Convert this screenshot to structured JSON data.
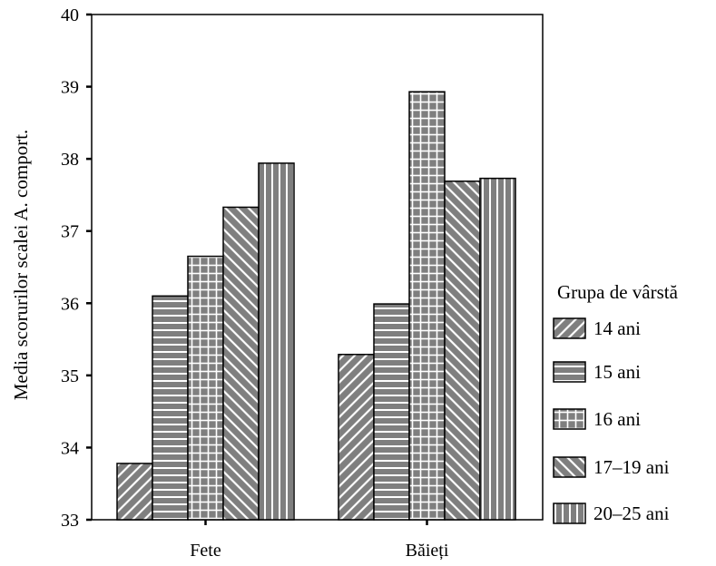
{
  "chart_data": {
    "type": "bar",
    "ylabel": "Media scorurilor scalei A. comport.",
    "xlabel": "",
    "title": "",
    "ylim": [
      33,
      40
    ],
    "yticks": [
      33,
      34,
      35,
      36,
      37,
      38,
      39,
      40
    ],
    "categories": [
      "Fete",
      "Băieți"
    ],
    "legend_title": "Grupa de vârstă",
    "legend_position": "right",
    "grid": false,
    "series": [
      {
        "name": "14 ani",
        "pattern": "diag-back",
        "values": [
          33.78,
          35.29
        ]
      },
      {
        "name": "15 ani",
        "pattern": "horizontal",
        "values": [
          36.1,
          35.99
        ]
      },
      {
        "name": "16 ani",
        "pattern": "grid",
        "values": [
          36.65,
          38.93
        ]
      },
      {
        "name": "17–19 ani",
        "pattern": "diag-fwd",
        "values": [
          37.33,
          37.69
        ]
      },
      {
        "name": "20–25 ani",
        "pattern": "vertical",
        "values": [
          37.94,
          37.73
        ]
      }
    ],
    "colors": {
      "fill": "#7f7f7f",
      "hatch": "#ffffff",
      "stroke": "#000000"
    }
  }
}
